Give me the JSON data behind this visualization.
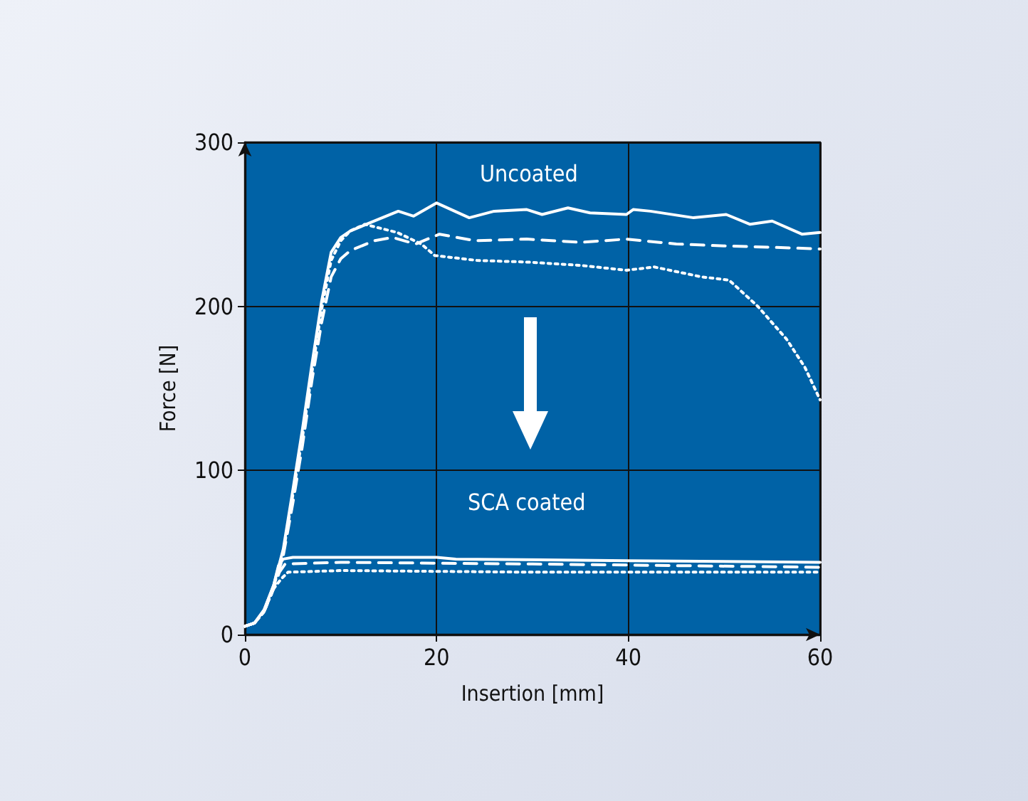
{
  "chart_data": {
    "type": "line",
    "xlabel": "Insertion [mm]",
    "ylabel": "Force [N]",
    "xlim": [
      0,
      60
    ],
    "xticks": [
      0,
      20,
      40,
      60
    ],
    "ylim": [
      0,
      300
    ],
    "yticks": [
      0,
      100,
      200,
      300
    ],
    "grid": true,
    "marker": "none",
    "annotations": [
      "Uncoated",
      "SCA coated"
    ],
    "series": [
      {
        "color": "#ffffff",
        "line_style": "solid",
        "x": [
          0,
          1,
          2,
          3,
          4,
          5,
          6,
          7,
          8,
          9,
          10,
          11,
          13.5,
          16,
          17.6,
          20,
          23.4,
          26,
          29.4,
          31,
          33.7,
          36,
          39.8,
          40.5,
          42.3,
          46.8,
          50.2,
          52.7,
          55,
          58.1,
          60
        ],
        "values": [
          5,
          7,
          15,
          30,
          52,
          88,
          125,
          165,
          203,
          233,
          242,
          246,
          252,
          258,
          255,
          263,
          254,
          258,
          259,
          256,
          260,
          257,
          256,
          259,
          258,
          254,
          256,
          250,
          252,
          244,
          245
        ]
      },
      {
        "color": "#ffffff",
        "line_style": "dashed",
        "x": [
          0,
          1,
          2,
          3,
          4,
          5,
          6,
          7,
          8,
          9,
          10,
          11,
          13.5,
          15.4,
          17.8,
          20.3,
          24,
          29.4,
          35,
          39.8,
          45,
          49.2,
          55,
          60
        ],
        "values": [
          5,
          7,
          14,
          28,
          48,
          80,
          115,
          155,
          190,
          218,
          229,
          234,
          240,
          242,
          238,
          244,
          240,
          241,
          239,
          241,
          238,
          237,
          236,
          235
        ]
      },
      {
        "color": "#ffffff",
        "line_style": "dotted",
        "x": [
          0,
          1,
          2,
          3,
          4,
          5,
          6,
          7,
          8,
          9,
          10,
          11,
          12.5,
          15.9,
          18.4,
          19.8,
          24.2,
          29.4,
          35,
          39.8,
          42.7,
          47.6,
          50.5,
          53.5,
          56.5,
          58.4,
          60
        ],
        "values": [
          5,
          7,
          14,
          29,
          50,
          85,
          120,
          160,
          198,
          228,
          240,
          246,
          250,
          245,
          238,
          231,
          228,
          227,
          225,
          222,
          224,
          218,
          216,
          200,
          180,
          163,
          143
        ]
      },
      {
        "color": "#ffffff",
        "line_style": "solid",
        "x": [
          0,
          1,
          2,
          3,
          3.5,
          4,
          5,
          10,
          20,
          22,
          40,
          60
        ],
        "values": [
          5,
          7,
          15,
          30,
          42,
          46,
          47,
          47,
          47,
          46,
          45,
          44
        ]
      },
      {
        "color": "#ffffff",
        "line_style": "dashed",
        "x": [
          0,
          1,
          2,
          3,
          3.6,
          4.2,
          10,
          30,
          45,
          60
        ],
        "values": [
          5,
          7,
          14,
          28,
          38,
          43,
          44,
          43,
          42,
          41
        ]
      },
      {
        "color": "#ffffff",
        "line_style": "dotted",
        "x": [
          0,
          1,
          2,
          3,
          3.8,
          4.5,
          10,
          30,
          60
        ],
        "values": [
          5,
          7,
          14,
          28,
          34,
          38,
          39,
          38,
          38
        ]
      }
    ]
  }
}
